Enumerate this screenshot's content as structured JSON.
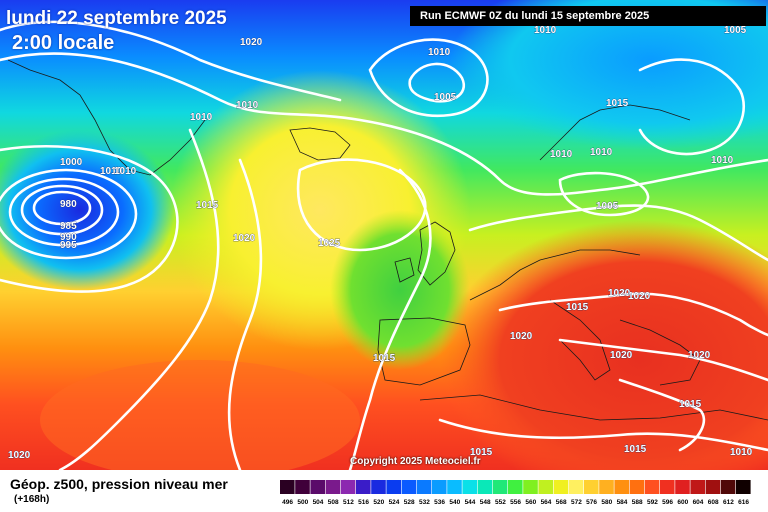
{
  "header": {
    "date": "lundi 22 septembre 2025",
    "time": "2:00 locale",
    "run": "Run ECMWF 0Z du lundi 15 septembre 2025"
  },
  "copyright": "Copyright 2025 Meteociel.fr",
  "legend": {
    "title": "Géop. z500, pression niveau mer",
    "lead": "(+168h)",
    "values": [
      "496",
      "500",
      "504",
      "508",
      "512",
      "516",
      "520",
      "524",
      "528",
      "532",
      "536",
      "540",
      "544",
      "548",
      "552",
      "556",
      "560",
      "564",
      "568",
      "572",
      "576",
      "580",
      "584",
      "588",
      "592",
      "596",
      "600",
      "604",
      "608",
      "612",
      "616"
    ],
    "colors": [
      "#2a0022",
      "#40003a",
      "#5a0a6a",
      "#7a1a8c",
      "#8c28b0",
      "#3a1cc8",
      "#1a2ae0",
      "#0a3cf0",
      "#0a5aff",
      "#0a7aff",
      "#0a9cff",
      "#0abcff",
      "#0ae0e8",
      "#0ae8b8",
      "#20e878",
      "#40f040",
      "#80f020",
      "#c0f020",
      "#f0f020",
      "#fff060",
      "#ffd030",
      "#ffb020",
      "#ff9010",
      "#ff7010",
      "#ff5020",
      "#f03020",
      "#e02020",
      "#c01818",
      "#a01010",
      "#500808",
      "#100000"
    ]
  },
  "isobars": [
    {
      "label": "1020",
      "id": "1020-a"
    },
    {
      "label": "1010",
      "id": "1010-a"
    },
    {
      "label": "1010",
      "id": "1010-b"
    },
    {
      "label": "1005",
      "id": "1005-a"
    },
    {
      "label": "1010",
      "id": "1010-c"
    },
    {
      "label": "1000",
      "id": "1000-a"
    },
    {
      "label": "1010",
      "id": "1010-d"
    },
    {
      "label": "1010",
      "id": "1010-e"
    },
    {
      "label": "980",
      "id": "980-a"
    },
    {
      "label": "985",
      "id": "985-a"
    },
    {
      "label": "990",
      "id": "990-a"
    },
    {
      "label": "995",
      "id": "995-a"
    },
    {
      "label": "1015",
      "id": "1015-a"
    },
    {
      "label": "1020",
      "id": "1020-b"
    },
    {
      "label": "1025",
      "id": "1025-a"
    },
    {
      "label": "1015",
      "id": "1015-b"
    },
    {
      "label": "1010",
      "id": "1010-f"
    },
    {
      "label": "1010",
      "id": "1010-g"
    },
    {
      "label": "1010",
      "id": "1010-h"
    },
    {
      "label": "1005",
      "id": "1005-b"
    },
    {
      "label": "1015",
      "id": "1015-c"
    },
    {
      "label": "1020",
      "id": "1020-c"
    },
    {
      "label": "1020",
      "id": "1020-d"
    },
    {
      "label": "1020",
      "id": "1020-e"
    },
    {
      "label": "1020",
      "id": "1020-f"
    },
    {
      "label": "1020",
      "id": "1020-g"
    },
    {
      "label": "1015",
      "id": "1015-d"
    },
    {
      "label": "1015",
      "id": "1015-e"
    },
    {
      "label": "1015",
      "id": "1015-f"
    },
    {
      "label": "1015",
      "id": "1015-g"
    },
    {
      "label": "1020",
      "id": "1020-h"
    },
    {
      "label": "1010",
      "id": "1010-i"
    },
    {
      "label": "1010",
      "id": "1010-j"
    },
    {
      "label": "1005",
      "id": "1005-c"
    }
  ]
}
